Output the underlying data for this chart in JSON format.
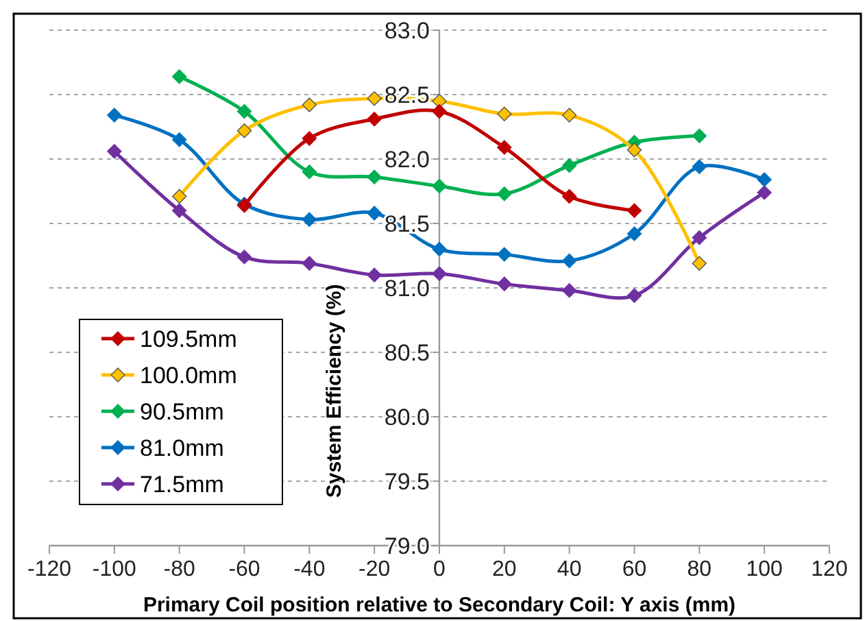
{
  "chart_data": {
    "type": "line",
    "xlabel": "Primary Coil position relative to Secondary Coil: Y axis (mm)",
    "ylabel": "System Efficiency (%)",
    "xlim": [
      -120,
      120
    ],
    "xticks": [
      -120,
      -100,
      -80,
      -60,
      -40,
      -20,
      0,
      20,
      40,
      60,
      80,
      100,
      120
    ],
    "ylim": [
      79,
      83
    ],
    "yticks": [
      {
        "value": 79,
        "label": "79.0"
      },
      {
        "value": 79.5,
        "label": "79.5"
      },
      {
        "value": 80,
        "label": "80.0"
      },
      {
        "value": 80.5,
        "label": "80.5"
      },
      {
        "value": 81,
        "label": "81.0"
      },
      {
        "value": 81.5,
        "label": "81.5"
      },
      {
        "value": 82,
        "label": "82.0"
      },
      {
        "value": 82.5,
        "label": "82.5"
      },
      {
        "value": 83,
        "label": "83.0"
      }
    ],
    "grid": "y",
    "legend": "bottom left",
    "marker": "diamond",
    "line_style": "solid",
    "series": [
      {
        "name": "109.5mm",
        "color": "#c00000",
        "x": [
          -60,
          -40,
          -20,
          0,
          20,
          40,
          60
        ],
        "values": [
          81.64,
          82.16,
          82.31,
          82.37,
          82.09,
          81.71,
          81.6
        ]
      },
      {
        "name": "100.0mm",
        "color": "#ffc000",
        "x": [
          -80,
          -60,
          -40,
          -20,
          0,
          20,
          40,
          60,
          80
        ],
        "values": [
          81.71,
          82.22,
          82.42,
          82.47,
          82.45,
          82.35,
          82.34,
          82.07,
          81.19
        ]
      },
      {
        "name": "90.5mm",
        "color": "#00b050",
        "x": [
          -80,
          -60,
          -40,
          -20,
          0,
          20,
          40,
          60,
          80
        ],
        "values": [
          82.64,
          82.37,
          81.9,
          81.86,
          81.79,
          81.73,
          81.95,
          82.13,
          82.18
        ]
      },
      {
        "name": "81.0mm",
        "color": "#0070c0",
        "x": [
          -100,
          -80,
          -60,
          -40,
          -20,
          0,
          20,
          40,
          60,
          80,
          100
        ],
        "values": [
          82.34,
          82.15,
          81.65,
          81.53,
          81.58,
          81.3,
          81.26,
          81.21,
          81.42,
          81.94,
          81.84
        ]
      },
      {
        "name": "71.5mm",
        "color": "#7030a0",
        "x": [
          -100,
          -80,
          -60,
          -40,
          -20,
          0,
          20,
          40,
          60,
          80,
          100
        ],
        "values": [
          82.06,
          81.6,
          81.24,
          81.19,
          81.1,
          81.11,
          81.03,
          80.98,
          80.94,
          81.39,
          81.74
        ]
      }
    ]
  }
}
